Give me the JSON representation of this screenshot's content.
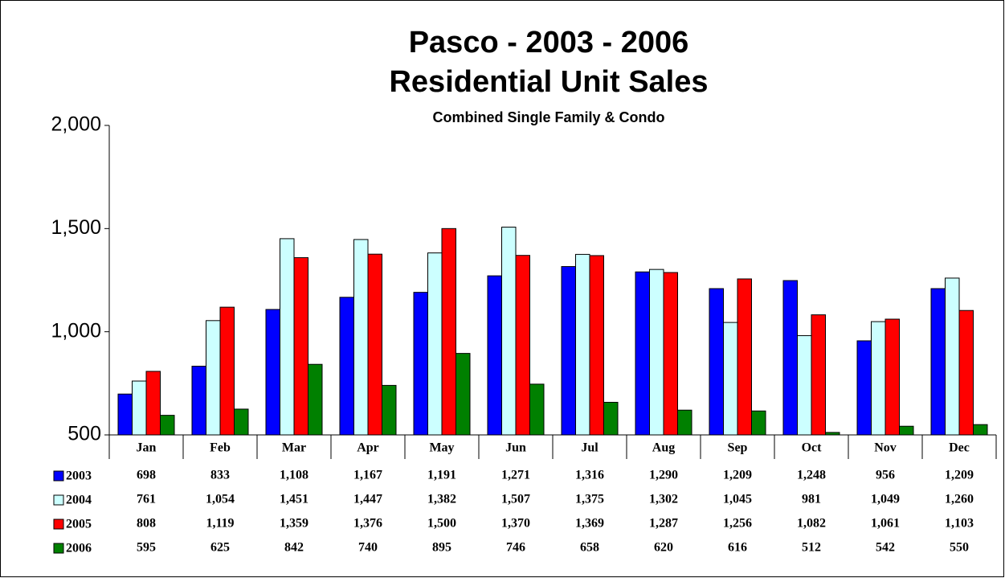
{
  "chart_data": {
    "type": "bar",
    "title": "Pasco - 2003 - 2006",
    "subtitle": "Residential Unit Sales",
    "annotation": "Combined Single Family & Condo",
    "categories": [
      "Jan",
      "Feb",
      "Mar",
      "Apr",
      "May",
      "Jun",
      "Jul",
      "Aug",
      "Sep",
      "Oct",
      "Nov",
      "Dec"
    ],
    "series": [
      {
        "name": "2003",
        "color": "#0000ff",
        "values": [
          698,
          833,
          1108,
          1167,
          1191,
          1271,
          1316,
          1290,
          1209,
          1248,
          956,
          1209
        ],
        "value_labels": [
          "698",
          "833",
          "1,108",
          "1,167",
          "1,191",
          "1,271",
          "1,316",
          "1,290",
          "1,209",
          "1,248",
          "956",
          "1,209"
        ]
      },
      {
        "name": "2004",
        "color": "#ccffff",
        "values": [
          761,
          1054,
          1451,
          1447,
          1382,
          1507,
          1375,
          1302,
          1045,
          981,
          1049,
          1260
        ],
        "value_labels": [
          "761",
          "1,054",
          "1,451",
          "1,447",
          "1,382",
          "1,507",
          "1,375",
          "1,302",
          "1,045",
          "981",
          "1,049",
          "1,260"
        ]
      },
      {
        "name": "2005",
        "color": "#ff0000",
        "values": [
          808,
          1119,
          1359,
          1376,
          1500,
          1370,
          1369,
          1287,
          1256,
          1082,
          1061,
          1103
        ],
        "value_labels": [
          "808",
          "1,119",
          "1,359",
          "1,376",
          "1,500",
          "1,370",
          "1,369",
          "1,287",
          "1,256",
          "1,082",
          "1,061",
          "1,103"
        ]
      },
      {
        "name": "2006",
        "color": "#008000",
        "values": [
          595,
          625,
          842,
          740,
          895,
          746,
          658,
          620,
          616,
          512,
          542,
          550
        ],
        "value_labels": [
          "595",
          "625",
          "842",
          "740",
          "895",
          "746",
          "658",
          "620",
          "616",
          "512",
          "542",
          "550"
        ]
      }
    ],
    "ylim": [
      500,
      2000
    ],
    "yticks": [
      500,
      {
        "value": 1000,
        "label": "1,000"
      },
      {
        "value": 1500,
        "label": "1,500"
      },
      {
        "value": 2000,
        "label": "2,000"
      }
    ]
  }
}
